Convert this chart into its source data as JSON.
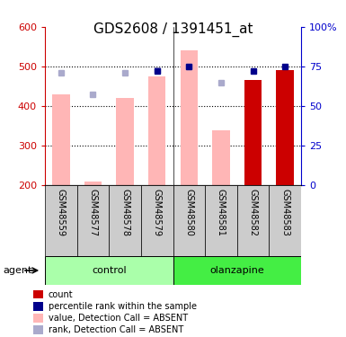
{
  "title": "GDS2608 / 1391451_at",
  "samples": [
    "GSM48559",
    "GSM48577",
    "GSM48578",
    "GSM48579",
    "GSM48580",
    "GSM48581",
    "GSM48582",
    "GSM48583"
  ],
  "pink_bars": {
    "indices": [
      0,
      1,
      2,
      3,
      4,
      5
    ],
    "values": [
      430,
      210,
      420,
      475,
      540,
      340
    ]
  },
  "light_blue_squares": {
    "indices": [
      0,
      1,
      2,
      3,
      4,
      5
    ],
    "values": [
      485,
      430,
      485,
      490,
      500,
      460
    ]
  },
  "dark_blue_squares": {
    "indices": [
      3,
      4,
      6,
      7
    ],
    "values": [
      72,
      75,
      72,
      75
    ]
  },
  "red_bars": {
    "indices": [
      6,
      7
    ],
    "values": [
      465,
      490
    ]
  },
  "ylim_left": [
    200,
    600
  ],
  "ylim_right": [
    0,
    100
  ],
  "yticks_left": [
    200,
    300,
    400,
    500,
    600
  ],
  "yticks_right": [
    0,
    25,
    50,
    75,
    100
  ],
  "ytick_labels_right": [
    "0",
    "25",
    "50",
    "75",
    "100%"
  ],
  "bar_bottom": 200,
  "bar_width": 0.55,
  "left_axis_color": "#CC0000",
  "right_axis_color": "#0000CC",
  "title_fontsize": 11,
  "group_control_color": "#AAFFAA",
  "group_olanzapine_color": "#44EE44",
  "sample_bg_color": "#CCCCCC",
  "legend_colors": [
    "#CC0000",
    "#00008B",
    "#FFB6B6",
    "#AAAACC"
  ],
  "legend_labels": [
    "count",
    "percentile rank within the sample",
    "value, Detection Call = ABSENT",
    "rank, Detection Call = ABSENT"
  ]
}
